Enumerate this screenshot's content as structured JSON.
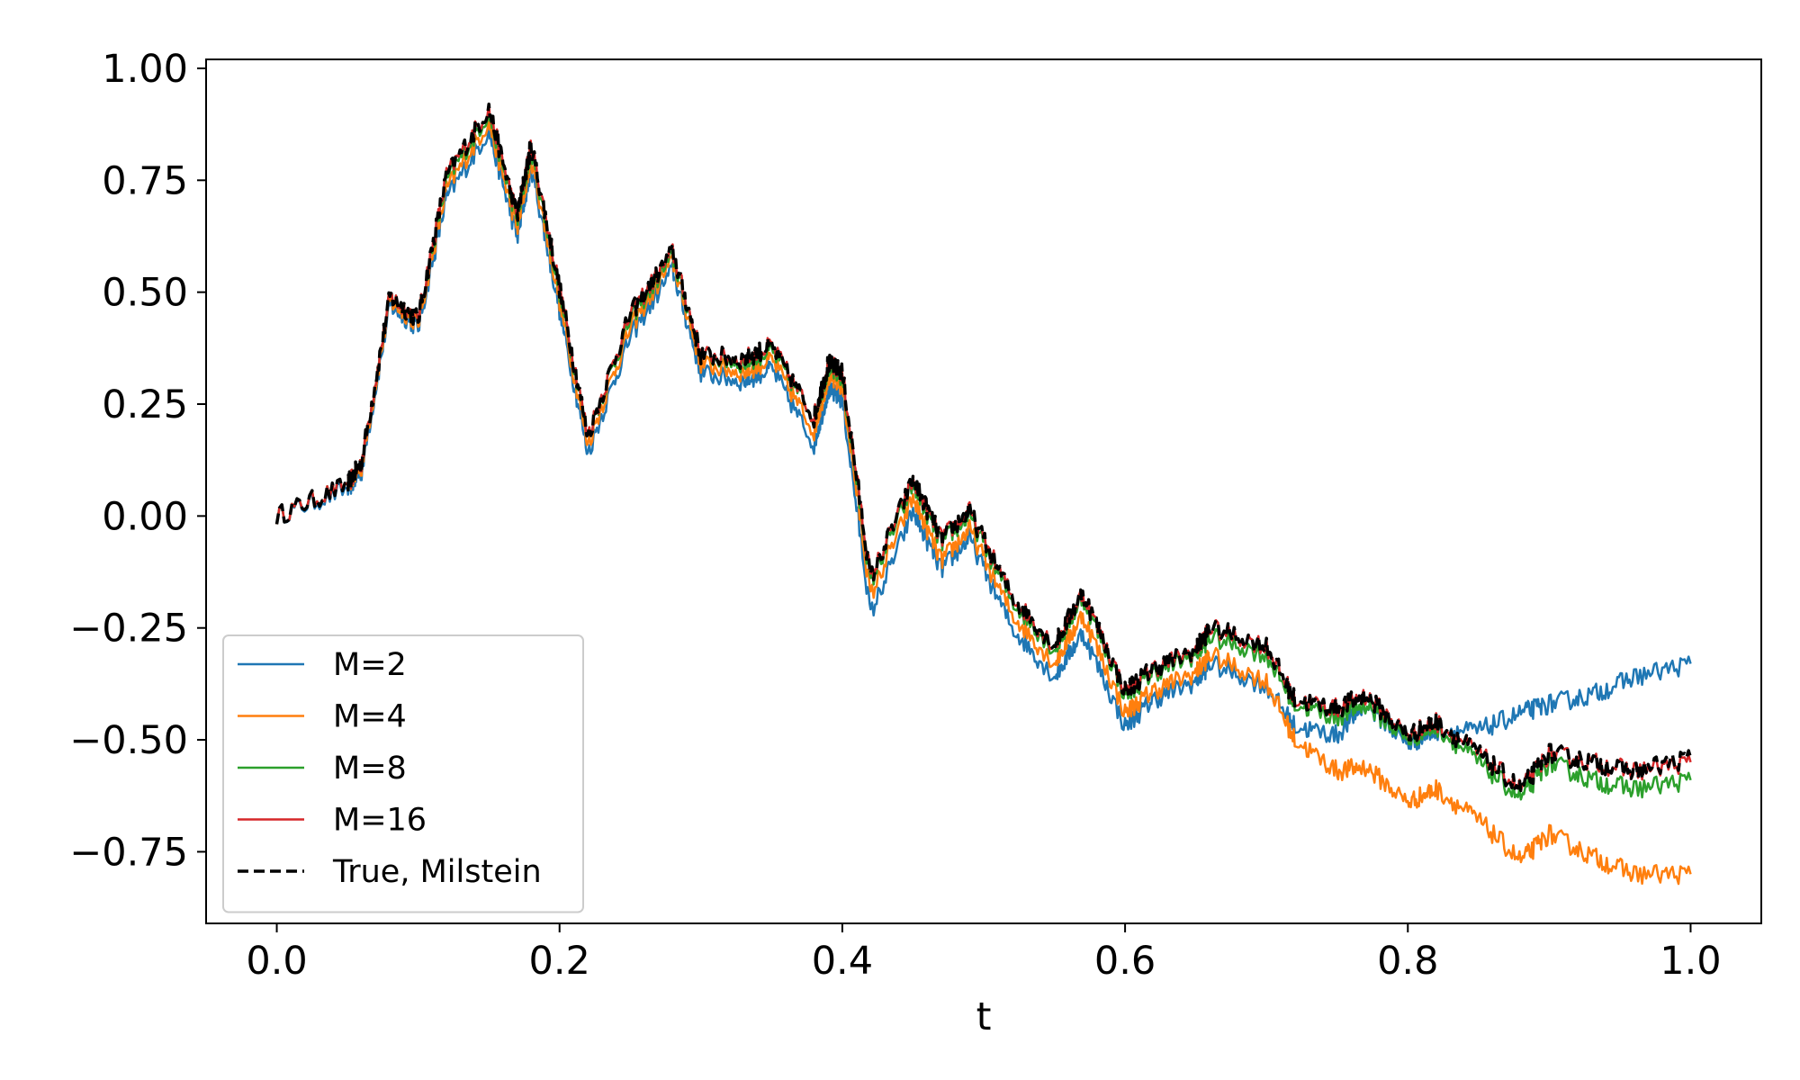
{
  "chart_data": {
    "type": "line",
    "title": "",
    "xlabel": "t",
    "ylabel": "",
    "xlim": [
      -0.05,
      1.05
    ],
    "ylim": [
      -0.91,
      1.02
    ],
    "x_ticks": [
      0.0,
      0.2,
      0.4,
      0.6,
      0.8,
      1.0
    ],
    "x_tick_labels": [
      "0.0",
      "0.2",
      "0.4",
      "0.6",
      "0.8",
      "1.0"
    ],
    "y_ticks": [
      1.0,
      0.75,
      0.5,
      0.25,
      0.0,
      -0.25,
      -0.5,
      -0.75
    ],
    "y_tick_labels": [
      "1.00",
      "0.75",
      "0.50",
      "0.25",
      "0.00",
      "−0.25",
      "−0.50",
      "−0.75"
    ],
    "grid": false,
    "legend_position": "lower-left",
    "x": [
      0.0,
      0.05,
      0.06,
      0.08,
      0.1,
      0.12,
      0.15,
      0.17,
      0.18,
      0.2,
      0.22,
      0.25,
      0.28,
      0.3,
      0.33,
      0.35,
      0.38,
      0.39,
      0.4,
      0.42,
      0.45,
      0.47,
      0.49,
      0.52,
      0.55,
      0.57,
      0.6,
      0.62,
      0.65,
      0.66,
      0.7,
      0.72,
      0.75,
      0.77,
      0.8,
      0.82,
      0.85,
      0.88,
      0.9,
      0.93,
      0.96,
      1.0
    ],
    "series": [
      {
        "name": "M=2",
        "color": "#1f77b4",
        "style": "solid",
        "values": [
          0.0,
          0.06,
          0.1,
          0.47,
          0.42,
          0.71,
          0.86,
          0.62,
          0.78,
          0.46,
          0.14,
          0.4,
          0.55,
          0.32,
          0.3,
          0.33,
          0.16,
          0.28,
          0.26,
          -0.22,
          0.01,
          -0.12,
          -0.05,
          -0.25,
          -0.36,
          -0.26,
          -0.47,
          -0.41,
          -0.37,
          -0.33,
          -0.38,
          -0.47,
          -0.49,
          -0.42,
          -0.51,
          -0.48,
          -0.48,
          -0.44,
          -0.42,
          -0.4,
          -0.36,
          -0.33
        ]
      },
      {
        "name": "M=4",
        "color": "#ff7f0e",
        "style": "solid",
        "values": [
          0.0,
          0.07,
          0.11,
          0.48,
          0.43,
          0.73,
          0.88,
          0.64,
          0.8,
          0.48,
          0.16,
          0.42,
          0.57,
          0.34,
          0.32,
          0.35,
          0.19,
          0.31,
          0.29,
          -0.18,
          0.04,
          -0.1,
          -0.03,
          -0.22,
          -0.33,
          -0.22,
          -0.44,
          -0.39,
          -0.35,
          -0.31,
          -0.37,
          -0.5,
          -0.57,
          -0.56,
          -0.64,
          -0.61,
          -0.68,
          -0.77,
          -0.71,
          -0.76,
          -0.8,
          -0.8
        ]
      },
      {
        "name": "M=8",
        "color": "#2ca02c",
        "style": "solid",
        "values": [
          0.0,
          0.07,
          0.12,
          0.49,
          0.44,
          0.75,
          0.9,
          0.66,
          0.82,
          0.5,
          0.18,
          0.44,
          0.58,
          0.36,
          0.34,
          0.37,
          0.22,
          0.33,
          0.31,
          -0.15,
          0.07,
          -0.06,
          0.0,
          -0.19,
          -0.3,
          -0.18,
          -0.4,
          -0.35,
          -0.31,
          -0.27,
          -0.31,
          -0.42,
          -0.45,
          -0.42,
          -0.5,
          -0.47,
          -0.55,
          -0.63,
          -0.55,
          -0.59,
          -0.61,
          -0.59
        ]
      },
      {
        "name": "M=16",
        "color": "#d62728",
        "style": "solid",
        "values": [
          0.0,
          0.07,
          0.12,
          0.49,
          0.44,
          0.76,
          0.91,
          0.67,
          0.83,
          0.51,
          0.18,
          0.45,
          0.59,
          0.36,
          0.35,
          0.38,
          0.22,
          0.34,
          0.32,
          -0.14,
          0.08,
          -0.05,
          0.01,
          -0.18,
          -0.29,
          -0.17,
          -0.39,
          -0.34,
          -0.3,
          -0.25,
          -0.29,
          -0.41,
          -0.43,
          -0.4,
          -0.49,
          -0.46,
          -0.53,
          -0.61,
          -0.53,
          -0.55,
          -0.57,
          -0.55
        ]
      },
      {
        "name": "True, Milstein",
        "color": "#000000",
        "style": "dashed",
        "values": [
          0.0,
          0.07,
          0.12,
          0.49,
          0.44,
          0.76,
          0.91,
          0.67,
          0.83,
          0.51,
          0.18,
          0.45,
          0.59,
          0.36,
          0.35,
          0.38,
          0.22,
          0.34,
          0.32,
          -0.14,
          0.08,
          -0.05,
          0.01,
          -0.18,
          -0.29,
          -0.17,
          -0.39,
          -0.34,
          -0.3,
          -0.25,
          -0.29,
          -0.41,
          -0.43,
          -0.4,
          -0.49,
          -0.46,
          -0.53,
          -0.61,
          -0.53,
          -0.55,
          -0.57,
          -0.54
        ]
      }
    ]
  }
}
